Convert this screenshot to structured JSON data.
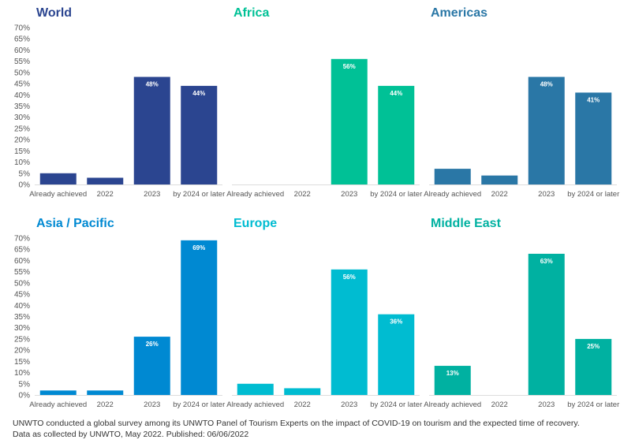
{
  "chart_data": [
    {
      "type": "bar",
      "title": "World",
      "color": "#2b4590",
      "categories": [
        "Already achieved",
        "2022",
        "2023",
        "by 2024 or later"
      ],
      "values": [
        5,
        3,
        48,
        44
      ],
      "data_labels": [
        "",
        "",
        "48%",
        "44%"
      ],
      "ylim": [
        0,
        70
      ],
      "yticks": [
        "0%",
        "5%",
        "10%",
        "15%",
        "20%",
        "25%",
        "30%",
        "35%",
        "40%",
        "45%",
        "50%",
        "55%",
        "60%",
        "65%",
        "70%"
      ],
      "grid": false
    },
    {
      "type": "bar",
      "title": "Africa",
      "color": "#00c196",
      "categories": [
        "Already achieved",
        "2022",
        "2023",
        "by 2024 or later"
      ],
      "values": [
        0,
        0,
        56,
        44
      ],
      "data_labels": [
        "",
        "",
        "56%",
        "44%"
      ],
      "ylim": [
        0,
        70
      ],
      "grid": false
    },
    {
      "type": "bar",
      "title": "Americas",
      "color": "#2a77a6",
      "categories": [
        "Already achieved",
        "2022",
        "2023",
        "by 2024 or later"
      ],
      "values": [
        7,
        4,
        48,
        41
      ],
      "data_labels": [
        "",
        "",
        "48%",
        "41%"
      ],
      "ylim": [
        0,
        70
      ],
      "grid": false
    },
    {
      "type": "bar",
      "title": "Asia / Pacific",
      "color": "#0089d2",
      "categories": [
        "Already achieved",
        "2022",
        "2023",
        "by 2024 or later"
      ],
      "values": [
        2,
        2,
        26,
        69
      ],
      "data_labels": [
        "",
        "",
        "26%",
        "69%"
      ],
      "ylim": [
        0,
        70
      ],
      "yticks": [
        "0%",
        "5%",
        "10%",
        "15%",
        "20%",
        "25%",
        "30%",
        "35%",
        "40%",
        "45%",
        "50%",
        "55%",
        "60%",
        "65%",
        "70%"
      ],
      "grid": false
    },
    {
      "type": "bar",
      "title": "Europe",
      "color": "#00bcd1",
      "categories": [
        "Already achieved",
        "2022",
        "2023",
        "by 2024 or later"
      ],
      "values": [
        5,
        3,
        56,
        36
      ],
      "data_labels": [
        "",
        "",
        "56%",
        "36%"
      ],
      "ylim": [
        0,
        70
      ],
      "grid": false
    },
    {
      "type": "bar",
      "title": "Middle East",
      "color": "#00b1a1",
      "categories": [
        "Already achieved",
        "2022",
        "2023",
        "by 2024 or later"
      ],
      "values": [
        13,
        0,
        63,
        25
      ],
      "data_labels": [
        "13%",
        "",
        "63%",
        "25%"
      ],
      "ylim": [
        0,
        70
      ],
      "grid": false
    }
  ],
  "footnote": {
    "line1": "UNWTO conducted a global survey among its UNWTO Panel of Tourism Experts on the impact of COVID-19 on tourism and the expected time of recovery.",
    "line2": "Data as collected by UNWTO, May 2022. Published: 06/06/2022"
  }
}
